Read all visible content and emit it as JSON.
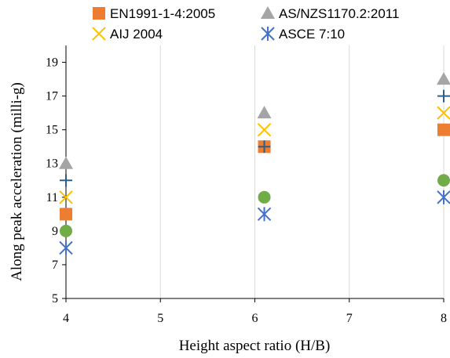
{
  "chart_data": {
    "type": "scatter",
    "xlabel": "Height aspect ratio (H/B)",
    "ylabel": "Along peak acceleration (milli-g)",
    "xlim": [
      4,
      8
    ],
    "ylim": [
      5,
      20
    ],
    "x_ticks": [
      4,
      5,
      6,
      7,
      8
    ],
    "y_ticks": [
      5,
      7,
      9,
      11,
      13,
      15,
      17,
      19
    ],
    "grid": "vertical",
    "legend_position": "top",
    "series": [
      {
        "name": "EN1991-1-4:2005",
        "marker": "square",
        "color": "#ED7D31",
        "points": [
          {
            "x": 4,
            "y": 10
          },
          {
            "x": 6.1,
            "y": 14
          },
          {
            "x": 8,
            "y": 15
          }
        ]
      },
      {
        "name": "AS/NZS1170.2:2011",
        "marker": "triangle",
        "color": "#A5A5A5",
        "points": [
          {
            "x": 4,
            "y": 13
          },
          {
            "x": 6.1,
            "y": 16
          },
          {
            "x": 8,
            "y": 18
          }
        ]
      },
      {
        "name": "AIJ 2004",
        "marker": "x",
        "color": "#FFC000",
        "points": [
          {
            "x": 4,
            "y": 11
          },
          {
            "x": 6.1,
            "y": 15
          },
          {
            "x": 8,
            "y": 16
          }
        ]
      },
      {
        "name": "ASCE 7:10",
        "marker": "asterisk",
        "color": "#4472C4",
        "points": [
          {
            "x": 4,
            "y": 8
          },
          {
            "x": 6.1,
            "y": 10
          },
          {
            "x": 8,
            "y": 11
          }
        ]
      },
      {
        "name": "",
        "marker": "plus",
        "color": "#2E5F8A",
        "points": [
          {
            "x": 4,
            "y": 12
          },
          {
            "x": 6.1,
            "y": 14
          },
          {
            "x": 8,
            "y": 17
          }
        ]
      },
      {
        "name": "",
        "marker": "circle",
        "color": "#70AD47",
        "points": [
          {
            "x": 4,
            "y": 9
          },
          {
            "x": 6.1,
            "y": 11
          },
          {
            "x": 8,
            "y": 12
          }
        ]
      }
    ]
  }
}
